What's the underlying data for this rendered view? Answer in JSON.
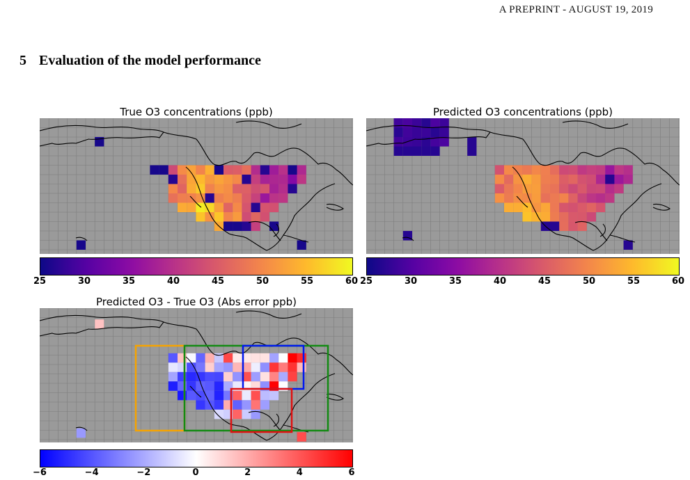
{
  "header": "A PREPRINT - AUGUST 19, 2019",
  "section": {
    "number": "5",
    "title": "Evaluation of the model performance"
  },
  "panels": {
    "true_o3": {
      "title": "True O3 concentrations (ppb)",
      "colormap": "plasma"
    },
    "pred_o3": {
      "title": "Predicted O3 concentrations (ppb)",
      "colormap": "plasma"
    },
    "error": {
      "title": "Predicted O3 - True O3 (Abs error ppb)",
      "colormap": "bwr"
    }
  },
  "colors": {
    "ocean": "#9a9a9a",
    "grid": "#7d7d7d",
    "orange_box": "#f5a300",
    "green_box": "#138a13",
    "blue_box": "#0018f0",
    "red_box": "#e01010"
  },
  "chart_data": [
    {
      "type": "heatmap",
      "title": "True O3 concentrations (ppb)",
      "colorbar_ticks": [
        "25",
        "30",
        "35",
        "40",
        "45",
        "50",
        "55",
        "60"
      ],
      "vmin": 25,
      "vmax": 60
    },
    {
      "type": "heatmap",
      "title": "Predicted O3 concentrations (ppb)",
      "colorbar_ticks": [
        "25",
        "30",
        "35",
        "40",
        "45",
        "50",
        "55",
        "60"
      ],
      "vmin": 25,
      "vmax": 60
    },
    {
      "type": "heatmap",
      "title": "Predicted O3 - True O3 (Abs error ppb)",
      "colorbar_ticks": [
        "−6",
        "−4",
        "−2",
        "0",
        "2",
        "4",
        "6"
      ],
      "vmin": -6,
      "vmax": 6
    }
  ]
}
